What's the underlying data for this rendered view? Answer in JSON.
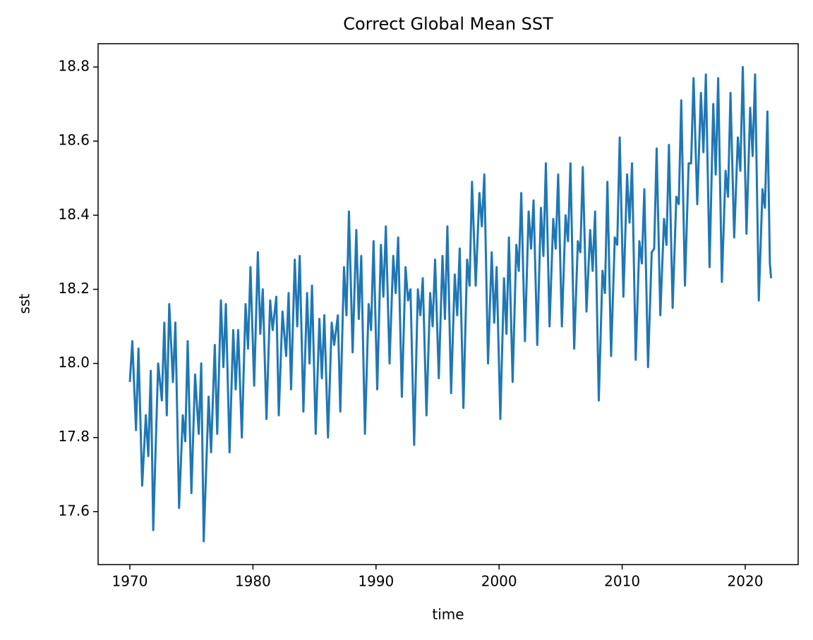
{
  "chart_data": {
    "type": "line",
    "title": "Correct Global Mean SST",
    "x_label": "time",
    "y_label": "sst",
    "xlim": [
      1967.42,
      2024.3
    ],
    "xticks": [
      1970,
      1980,
      1990,
      2000,
      2010,
      2020
    ],
    "ylim": [
      17.457,
      18.863
    ],
    "yticks": [
      17.6,
      17.8,
      {
        "value": 18,
        "label": "18.0"
      },
      18.2,
      18.4,
      18.6,
      18.8
    ],
    "series": [
      {
        "color": "#1f77b4",
        "x": [
          1970.0,
          1970.2,
          1970.5,
          1970.7,
          1971.0,
          1971.3,
          1971.5,
          1971.7,
          1971.9,
          1972.3,
          1972.6,
          1972.8,
          1973.0,
          1973.2,
          1973.5,
          1973.7,
          1974.0,
          1974.3,
          1974.5,
          1974.7,
          1975.0,
          1975.3,
          1975.6,
          1975.8,
          1976.0,
          1976.4,
          1976.6,
          1976.9,
          1977.1,
          1977.4,
          1977.6,
          1977.8,
          1978.1,
          1978.4,
          1978.6,
          1978.8,
          1979.1,
          1979.4,
          1979.6,
          1979.8,
          1980.1,
          1980.4,
          1980.6,
          1980.8,
          1981.1,
          1981.4,
          1981.6,
          1981.9,
          1982.1,
          1982.4,
          1982.7,
          1982.9,
          1983.1,
          1983.4,
          1983.6,
          1983.8,
          1984.1,
          1984.4,
          1984.6,
          1984.8,
          1985.1,
          1985.4,
          1985.6,
          1985.8,
          1986.1,
          1986.4,
          1986.6,
          1986.9,
          1987.1,
          1987.4,
          1987.6,
          1987.8,
          1988.1,
          1988.4,
          1988.6,
          1988.8,
          1989.1,
          1989.4,
          1989.6,
          1989.8,
          1990.1,
          1990.4,
          1990.6,
          1990.8,
          1991.1,
          1991.4,
          1991.6,
          1991.8,
          1992.1,
          1992.4,
          1992.6,
          1992.8,
          1993.1,
          1993.4,
          1993.6,
          1993.8,
          1994.1,
          1994.4,
          1994.6,
          1994.8,
          1995.1,
          1995.4,
          1995.6,
          1995.8,
          1996.1,
          1996.4,
          1996.6,
          1996.8,
          1997.1,
          1997.4,
          1997.6,
          1997.8,
          1998.1,
          1998.4,
          1998.6,
          1998.8,
          1999.1,
          1999.4,
          1999.6,
          1999.8,
          2000.1,
          2000.4,
          2000.6,
          2000.8,
          2001.1,
          2001.4,
          2001.6,
          2001.8,
          2002.1,
          2002.4,
          2002.6,
          2002.8,
          2003.1,
          2003.4,
          2003.6,
          2003.8,
          2004.1,
          2004.4,
          2004.6,
          2004.8,
          2005.1,
          2005.4,
          2005.6,
          2005.8,
          2006.1,
          2006.4,
          2006.6,
          2006.8,
          2007.1,
          2007.4,
          2007.6,
          2007.8,
          2008.1,
          2008.4,
          2008.6,
          2008.8,
          2009.1,
          2009.4,
          2009.6,
          2009.8,
          2010.1,
          2010.4,
          2010.6,
          2010.8,
          2011.1,
          2011.4,
          2011.6,
          2011.8,
          2012.1,
          2012.4,
          2012.6,
          2012.8,
          2013.1,
          2013.4,
          2013.6,
          2013.8,
          2014.1,
          2014.4,
          2014.6,
          2014.8,
          2015.1,
          2015.4,
          2015.6,
          2015.8,
          2016.1,
          2016.4,
          2016.6,
          2016.8,
          2017.1,
          2017.4,
          2017.6,
          2017.8,
          2018.1,
          2018.4,
          2018.6,
          2018.8,
          2019.1,
          2019.4,
          2019.6,
          2019.8,
          2020.1,
          2020.4,
          2020.6,
          2020.8,
          2021.1,
          2021.4,
          2021.6,
          2021.8,
          2022.0,
          2022.1
        ],
        "values": [
          17.95,
          18.06,
          17.82,
          18.04,
          17.67,
          17.86,
          17.75,
          17.98,
          17.55,
          18.0,
          17.9,
          18.11,
          17.86,
          18.16,
          17.95,
          18.11,
          17.61,
          17.86,
          17.79,
          18.06,
          17.65,
          17.97,
          17.81,
          18.0,
          17.52,
          17.91,
          17.76,
          18.05,
          17.81,
          18.17,
          17.99,
          18.16,
          17.76,
          18.09,
          17.93,
          18.09,
          17.8,
          18.16,
          18.04,
          18.26,
          17.94,
          18.3,
          18.08,
          18.2,
          17.85,
          18.17,
          18.09,
          18.18,
          17.86,
          18.14,
          18.02,
          18.19,
          17.93,
          18.28,
          18.1,
          18.29,
          17.87,
          18.19,
          18.0,
          18.21,
          17.81,
          18.12,
          17.96,
          18.13,
          17.8,
          18.11,
          18.05,
          18.13,
          17.87,
          18.26,
          18.13,
          18.41,
          18.03,
          18.36,
          18.12,
          18.29,
          17.81,
          18.16,
          18.09,
          18.33,
          17.93,
          18.32,
          18.18,
          18.37,
          18.0,
          18.29,
          18.19,
          18.34,
          17.91,
          18.26,
          18.17,
          18.2,
          17.78,
          18.2,
          18.13,
          18.23,
          17.86,
          18.19,
          18.1,
          18.28,
          17.96,
          18.29,
          18.12,
          18.37,
          17.92,
          18.24,
          18.13,
          18.31,
          17.88,
          18.28,
          18.21,
          18.49,
          18.21,
          18.46,
          18.37,
          18.51,
          18.0,
          18.3,
          18.11,
          18.26,
          17.85,
          18.23,
          18.08,
          18.34,
          17.95,
          18.32,
          18.25,
          18.46,
          18.06,
          18.41,
          18.31,
          18.44,
          18.05,
          18.42,
          18.29,
          18.54,
          18.1,
          18.39,
          18.31,
          18.51,
          18.1,
          18.4,
          18.33,
          18.54,
          18.04,
          18.33,
          18.3,
          18.53,
          18.14,
          18.36,
          18.25,
          18.41,
          17.9,
          18.25,
          18.19,
          18.49,
          18.02,
          18.34,
          18.32,
          18.61,
          18.18,
          18.51,
          18.38,
          18.54,
          18.01,
          18.33,
          18.27,
          18.47,
          17.99,
          18.3,
          18.31,
          18.58,
          18.13,
          18.39,
          18.32,
          18.59,
          18.15,
          18.45,
          18.43,
          18.71,
          18.21,
          18.54,
          18.54,
          18.77,
          18.43,
          18.73,
          18.57,
          18.78,
          18.26,
          18.7,
          18.51,
          18.77,
          18.22,
          18.52,
          18.45,
          18.73,
          18.34,
          18.61,
          18.52,
          18.8,
          18.35,
          18.69,
          18.56,
          18.78,
          18.17,
          18.47,
          18.42,
          18.68,
          18.27,
          18.23
        ]
      }
    ]
  }
}
